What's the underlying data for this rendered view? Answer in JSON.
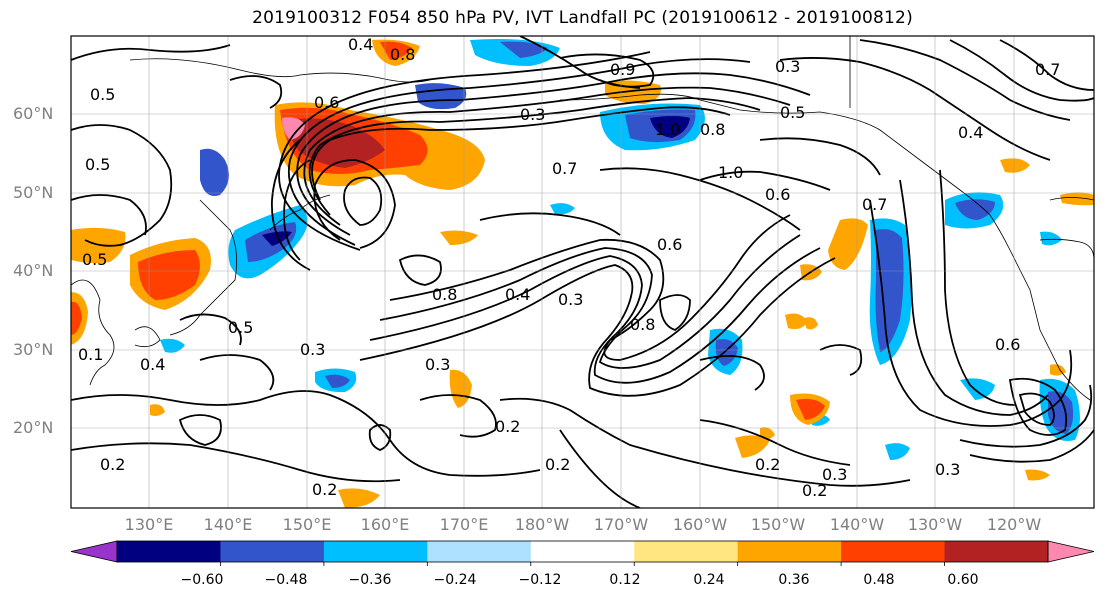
{
  "title": "2019100312 F054 850 hPa PV, IVT Landfall PC (2019100612 - 2019100812)",
  "lat_labels": [
    "60°N",
    "50°N",
    "40°N",
    "30°N",
    "20°N"
  ],
  "lon_labels": [
    "130°E",
    "140°E",
    "150°E",
    "160°E",
    "170°E",
    "180°W",
    "170°W",
    "160°W",
    "150°W",
    "140°W",
    "130°W",
    "120°W"
  ],
  "colorbar": {
    "colors": [
      "#9933cc",
      "#000080",
      "#3355cc",
      "#00bfff",
      "#aee0ff",
      "#ffffff",
      "#ffe680",
      "#ffa500",
      "#ff4000",
      "#b22222",
      "#ff88b0"
    ],
    "tick_labels": [
      "−0.60",
      "−0.48",
      "−0.36",
      "−0.24",
      "−0.12",
      "0.12",
      "0.24",
      "0.36",
      "0.48",
      "0.60"
    ]
  },
  "contour_labels": [
    "0.4",
    "0.8",
    "0.3",
    "0.5",
    "0.6",
    "0.5",
    "0.7",
    "1.0",
    "0.6",
    "0.8",
    "1.0",
    "0.4",
    "0.5",
    "0.9",
    "0.3",
    "0.6",
    "0.8",
    "0.3",
    "0.5",
    "0.4",
    "0.3",
    "0.2",
    "0.2",
    "0.3",
    "0.2",
    "0.2",
    "0.3",
    "0.3",
    "0.2",
    "0.4",
    "0.7",
    "0.6",
    "0.8",
    "0.1",
    "0.2",
    "0.5",
    "0.7"
  ]
}
